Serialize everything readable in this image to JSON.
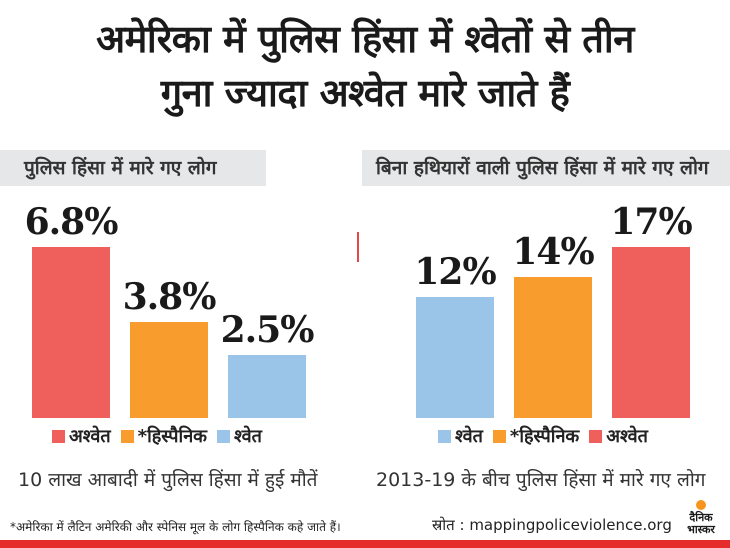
{
  "title_lines": [
    "अमेरिका में पुलिस हिंसा में श्वेतों से तीन",
    "गुना ज्यादा अश्वेत मारे जाते हैं"
  ],
  "colors": {
    "black": "#ef5f5b",
    "hispanic": "#f89c2e",
    "white": "#9ac5e8",
    "header_bg": "#e6e7e8"
  },
  "chart_data": [
    {
      "type": "bar",
      "title": "पुलिस हिंसा में मारे गए लोग",
      "xlabel": "10 लाख आबादी में पुलिस हिंसा में हुई मौतें",
      "categories": [
        "अश्वेत",
        "*हिस्पैनिक",
        "श्वेत"
      ],
      "values": [
        6.8,
        3.8,
        2.5
      ],
      "labels": [
        "6.8%",
        "3.8%",
        "2.5%"
      ],
      "colors": [
        "#ef5f5b",
        "#f89c2e",
        "#9ac5e8"
      ],
      "ylim": [
        0,
        6.8
      ],
      "legend": "bottom"
    },
    {
      "type": "bar",
      "title": "बिना हथियारों वाली पुलिस हिंसा में मारे गए लोग",
      "xlabel": "2013-19 के बीच पुलिस हिंसा में मारे गए लोग",
      "categories": [
        "श्वेत",
        "*हिस्पैनिक",
        "अश्वेत"
      ],
      "values": [
        12,
        14,
        17
      ],
      "labels": [
        "12%",
        "14%",
        "17%"
      ],
      "colors": [
        "#9ac5e8",
        "#f89c2e",
        "#ef5f5b"
      ],
      "ylim": [
        0,
        17
      ],
      "legend": "bottom"
    }
  ],
  "footnote": "*अमेरिका में लैटिन अमेरिकी और स्पेनिस मूल के लोग हिस्पैनिक कहे जाते हैं।",
  "source": "स्रोत : mappingpoliceviolence.org",
  "logo_text": [
    "दैनिक",
    "भास्कर"
  ]
}
